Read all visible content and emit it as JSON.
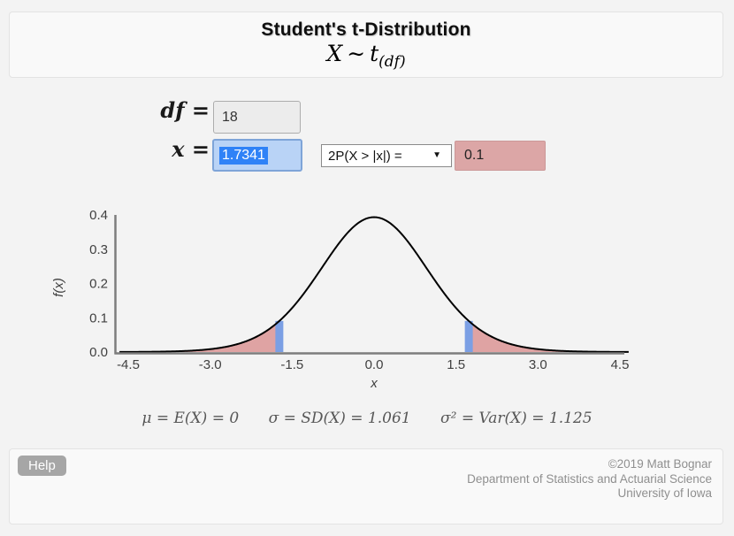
{
  "header": {
    "title": "Student's t-Distribution",
    "formula": {
      "variable": "X",
      "tilde": "∼",
      "dist": "t",
      "subscript": "(df)"
    }
  },
  "controls": {
    "df_label": "df =",
    "df_value": "18",
    "x_label": "x =",
    "x_value": "1.7341",
    "prob_select": {
      "selected": "2P(X > |x|) =",
      "options": [
        "2P(X > |x|) ="
      ],
      "caret_icon": "▼"
    },
    "prob_value": "0.1"
  },
  "chart_data": {
    "type": "area",
    "distribution": "t",
    "df": 18,
    "cutoff": 1.7341,
    "shaded_region": "two-tail",
    "tail_probability": 0.1,
    "peak_density": 0.393,
    "cutoff_density": 0.091,
    "xlabel": "x",
    "ylabel": "f(x)",
    "xlim": [
      -4.5,
      4.5
    ],
    "ylim": [
      0,
      0.4
    ],
    "xticks": [
      -4.5,
      -3.0,
      -1.5,
      0.0,
      1.5,
      3.0,
      4.5
    ],
    "xtick_labels": [
      "-4.5",
      "-3.0",
      "-1.5",
      "0.0",
      "1.5",
      "3.0",
      "4.5"
    ],
    "yticks": [
      0.0,
      0.1,
      0.2,
      0.3,
      0.4
    ],
    "ytick_labels": [
      "0.0",
      "0.1",
      "0.2",
      "0.3",
      "0.4"
    ],
    "grid": false,
    "curve_color": "#000000",
    "tail_fill_color": "#dfa3a3",
    "cutoff_marker_color": "#7b9fe4",
    "axis_color": "#7d7d7d",
    "tick_label_color": "#404040"
  },
  "stats": {
    "mean": "μ = E(X) = 0",
    "sd": "σ = SD(X) = 1.061",
    "variance": "σ² = Var(X) = 1.125"
  },
  "footer": {
    "help_label": "Help",
    "credit_line1": "©2019 Matt Bognar",
    "credit_line2": "Department of Statistics and Actuarial Science",
    "credit_line3": "University of Iowa"
  }
}
